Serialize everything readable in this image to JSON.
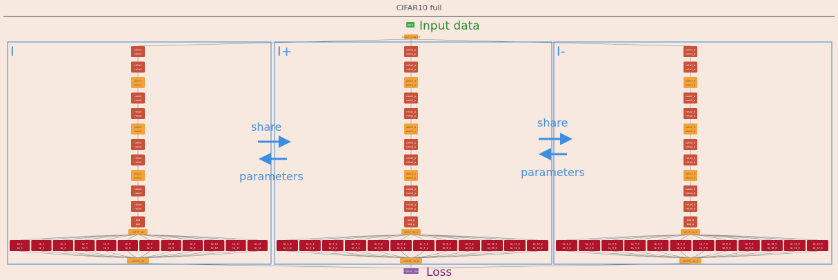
{
  "window_title": "CIFAR10 full",
  "input_node": {
    "label": "Input data",
    "color": "#2e8b2e",
    "badge_color": "#3aaa4a",
    "badge_glyph": "data",
    "node_text": "slice_triplet"
  },
  "loss_node": {
    "label": "Loss",
    "color": "#7a1e78",
    "badge_color": "#8a5aa8",
    "badge_glyph": "triplet_loss"
  },
  "panels": [
    {
      "label": "I",
      "suffix": ""
    },
    {
      "label": "I+",
      "suffix": "_p"
    },
    {
      "label": "I-",
      "suffix": "_m"
    }
  ],
  "share_labels": [
    {
      "top": "share",
      "bottom": "parameters"
    },
    {
      "top": "share",
      "bottom": "parameters"
    }
  ],
  "colors": {
    "panel_border": "#3f87d1",
    "conv": "#c9503a",
    "pool": "#f2a33b",
    "ip": "#b0142a",
    "split": "#f2a33b",
    "concat": "#f2a33b",
    "accent_blue": "#3d8ee0",
    "background": "#f7e9df"
  },
  "layers": [
    {
      "type": "conv",
      "label": "conv1"
    },
    {
      "type": "conv",
      "label": "relu1"
    },
    {
      "type": "pool",
      "label": "pool1"
    },
    {
      "type": "conv",
      "label": "conv2"
    },
    {
      "type": "conv",
      "label": "relu2"
    },
    {
      "type": "pool",
      "label": "pool2"
    },
    {
      "type": "conv",
      "label": "conv3"
    },
    {
      "type": "conv",
      "label": "relu3"
    },
    {
      "type": "pool",
      "label": "pool3"
    },
    {
      "type": "conv",
      "label": "conv4"
    },
    {
      "type": "conv",
      "label": "relu4"
    },
    {
      "type": "conv",
      "label": "bn4"
    }
  ],
  "split_label": "split_ip",
  "concat_label": "concat_ip",
  "ip_heads": [
    "ip_1",
    "ip_2",
    "ip_3",
    "ip_4",
    "ip_5",
    "ip_6",
    "ip_7",
    "ip_8",
    "ip_9",
    "ip_10",
    "ip_11",
    "ip_12"
  ]
}
